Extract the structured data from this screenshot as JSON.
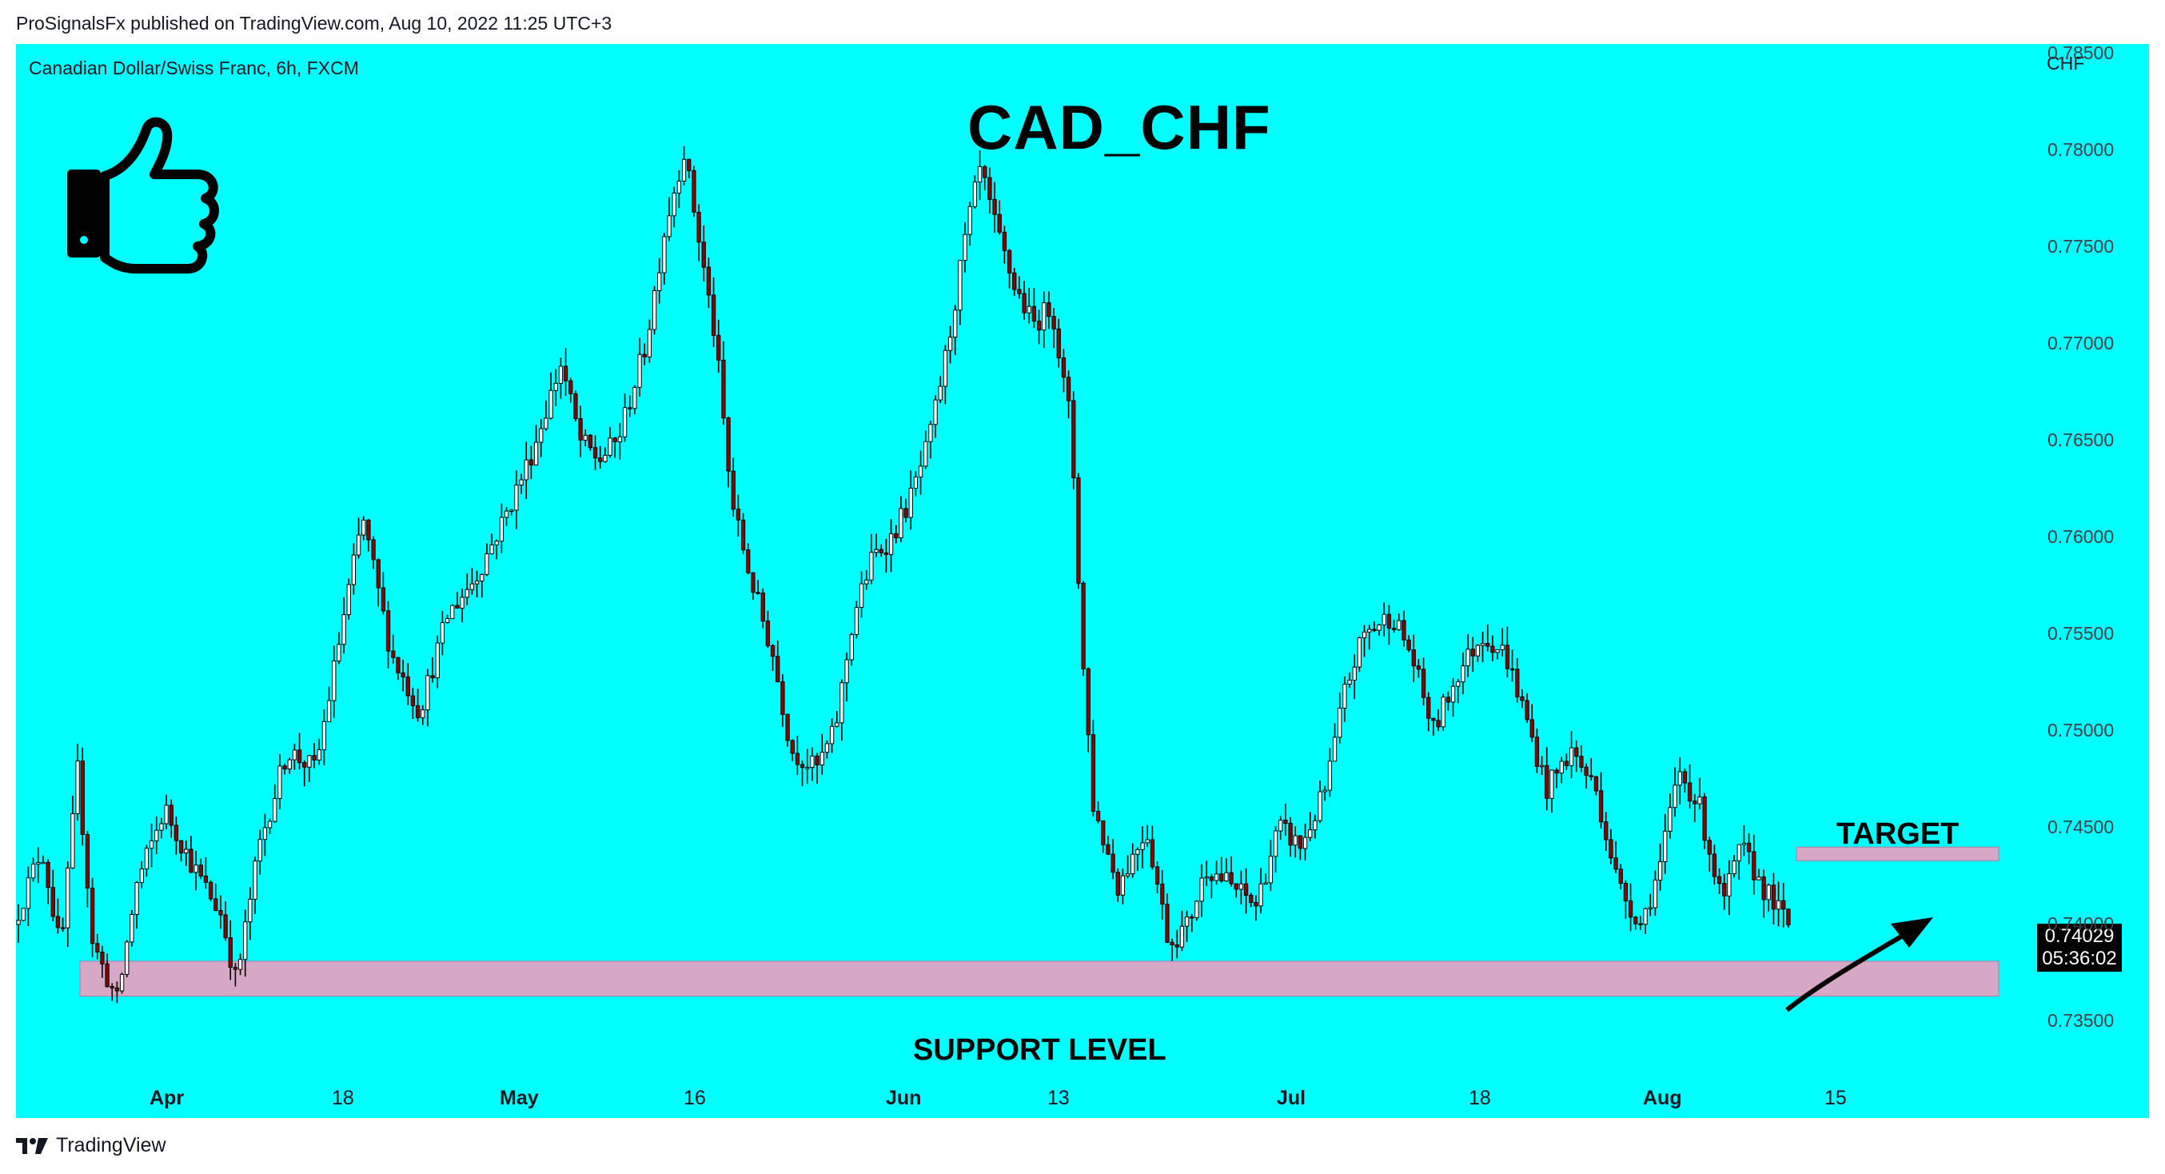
{
  "header": {
    "published": "ProSignalsFx published on TradingView.com, Aug 10, 2022 11:25 UTC+3"
  },
  "chart_meta": {
    "symbol": "Canadian Dollar/Swiss Franc, 6h, FXCM",
    "title": "CAD_CHF",
    "currency": "CHF",
    "last_price": "0.74029",
    "countdown": "05:36:02",
    "target_label": "TARGET",
    "support_label": "SUPPORT LEVEL",
    "bg_color": "#00ffff",
    "zone_color": "#d6a8c6"
  },
  "footer": {
    "brand": "TradingView"
  },
  "chart_data": {
    "type": "candlestick",
    "y_ticks": [
      "0.78500",
      "0.78000",
      "0.77500",
      "0.77000",
      "0.76500",
      "0.76000",
      "0.75500",
      "0.75000",
      "0.74500",
      "0.74000",
      "0.73500"
    ],
    "ylim": [
      0.73,
      0.7855
    ],
    "x_ticks": [
      {
        "label": "Apr",
        "bold": true
      },
      {
        "label": "18",
        "bold": false
      },
      {
        "label": "May",
        "bold": true
      },
      {
        "label": "16",
        "bold": false
      },
      {
        "label": "Jun",
        "bold": true
      },
      {
        "label": "13",
        "bold": false
      },
      {
        "label": "Jul",
        "bold": true
      },
      {
        "label": "18",
        "bold": false
      },
      {
        "label": "Aug",
        "bold": true
      },
      {
        "label": "15",
        "bold": false
      }
    ],
    "bull_color": "#ffffff",
    "bear_color": "#8b0000",
    "wick_color": "#000000",
    "candle_count": 360,
    "path_anchors": [
      [
        0,
        0.74
      ],
      [
        15,
        0.744
      ],
      [
        25,
        0.7385
      ],
      [
        34,
        0.748
      ],
      [
        42,
        0.739
      ],
      [
        55,
        0.736
      ],
      [
        65,
        0.742
      ],
      [
        80,
        0.746
      ],
      [
        95,
        0.743
      ],
      [
        110,
        0.7405
      ],
      [
        118,
        0.737
      ],
      [
        130,
        0.744
      ],
      [
        145,
        0.749
      ],
      [
        160,
        0.748
      ],
      [
        175,
        0.756
      ],
      [
        185,
        0.761
      ],
      [
        200,
        0.754
      ],
      [
        215,
        0.751
      ],
      [
        230,
        0.756
      ],
      [
        245,
        0.758
      ],
      [
        260,
        0.761
      ],
      [
        275,
        0.7645
      ],
      [
        290,
        0.769
      ],
      [
        300,
        0.765
      ],
      [
        310,
        0.764
      ],
      [
        320,
        0.765
      ],
      [
        335,
        0.77
      ],
      [
        345,
        0.776
      ],
      [
        355,
        0.78
      ],
      [
        362,
        0.776
      ],
      [
        372,
        0.77
      ],
      [
        380,
        0.762
      ],
      [
        390,
        0.758
      ],
      [
        402,
        0.754
      ],
      [
        412,
        0.749
      ],
      [
        425,
        0.748
      ],
      [
        435,
        0.75
      ],
      [
        445,
        0.756
      ],
      [
        455,
        0.759
      ],
      [
        465,
        0.76
      ],
      [
        475,
        0.762
      ],
      [
        485,
        0.765
      ],
      [
        495,
        0.77
      ],
      [
        505,
        0.776
      ],
      [
        512,
        0.779
      ],
      [
        520,
        0.776
      ],
      [
        530,
        0.773
      ],
      [
        540,
        0.771
      ],
      [
        550,
        0.772
      ],
      [
        556,
        0.768
      ],
      [
        560,
        0.766
      ],
      [
        566,
        0.754
      ],
      [
        572,
        0.746
      ],
      [
        585,
        0.742
      ],
      [
        600,
        0.745
      ],
      [
        612,
        0.739
      ],
      [
        622,
        0.74
      ],
      [
        632,
        0.743
      ],
      [
        645,
        0.742
      ],
      [
        658,
        0.741
      ],
      [
        670,
        0.745
      ],
      [
        682,
        0.744
      ],
      [
        695,
        0.747
      ],
      [
        705,
        0.752
      ],
      [
        715,
        0.755
      ],
      [
        730,
        0.756
      ],
      [
        740,
        0.754
      ],
      [
        752,
        0.75
      ],
      [
        765,
        0.753
      ],
      [
        778,
        0.755
      ],
      [
        790,
        0.754
      ],
      [
        800,
        0.751
      ],
      [
        812,
        0.747
      ],
      [
        825,
        0.749
      ],
      [
        838,
        0.747
      ],
      [
        850,
        0.742
      ],
      [
        862,
        0.74
      ],
      [
        872,
        0.743
      ],
      [
        882,
        0.748
      ],
      [
        893,
        0.746
      ],
      [
        905,
        0.741
      ],
      [
        915,
        0.744
      ],
      [
        926,
        0.742
      ],
      [
        940,
        0.74
      ]
    ],
    "support_zone": [
      0.7363,
      0.7381
    ],
    "target_zone": [
      0.7433,
      0.744
    ]
  }
}
